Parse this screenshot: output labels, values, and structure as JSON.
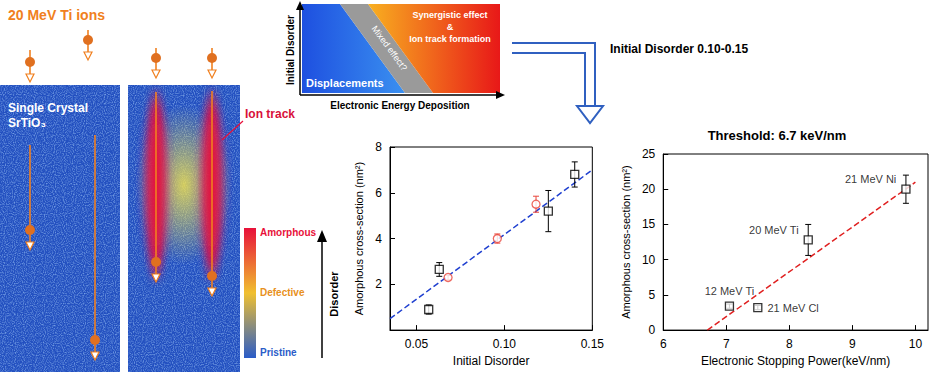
{
  "schematic": {
    "title": "20 MeV Ti ions",
    "crystal_label": [
      "Single Crystal",
      "SrTiO₃"
    ],
    "track_label": "Ion track",
    "color_bar": {
      "labels": [
        "Amorphous",
        "Defective",
        "Pristine"
      ],
      "axis_label": "Disorder"
    }
  },
  "regime_diagram": {
    "y_label": "Initial Disorder",
    "x_label": "Electronic Energy Deposition",
    "lower_region": "Displacements",
    "boundary": "Mixed effect?",
    "upper_region": [
      "Synergistic effect",
      "&",
      "Ion track formation"
    ]
  },
  "callout": "Initial Disorder 0.10-0.15",
  "chart_data": [
    {
      "type": "scatter",
      "x_label": "Initial Disorder",
      "y_label": "Amorphous cross-section (nm²)",
      "xlim": [
        0.035,
        0.15
      ],
      "xticks": [
        0.05,
        {
          "value": 0.1,
          "label": "0.10"
        },
        0.15
      ],
      "ylim": [
        0,
        8
      ],
      "yticks": [
        2,
        4,
        6,
        8
      ],
      "grid": false,
      "series": [
        {
          "type": "scatter",
          "marker": "square",
          "color": "#000000",
          "x": [
            0.057,
            0.063,
            0.125,
            0.14
          ],
          "values": [
            0.9,
            2.65,
            5.2,
            6.8
          ],
          "errors": [
            0.2,
            0.3,
            0.9,
            0.55
          ]
        },
        {
          "type": "scatter",
          "marker": "circle",
          "color": "#e8443a",
          "x": [
            0.068,
            0.096,
            0.118
          ],
          "values": [
            2.3,
            4.0,
            5.5
          ],
          "errors": [
            0.1,
            0.2,
            0.35
          ]
        },
        {
          "type": "line",
          "line_style": "dashed",
          "color": "#2040d0",
          "x": [
            0.035,
            0.15
          ],
          "values": [
            0.5,
            7.0
          ]
        }
      ]
    },
    {
      "type": "scatter",
      "title": "Threshold: 6.7 keV/nm",
      "x_label": "Electronic Stopping Power(keV/nm)",
      "y_label": "Amorphous cross-section (nm²)",
      "xlim": [
        6,
        10.2
      ],
      "xticks": [
        6,
        7,
        8,
        9,
        10
      ],
      "ylim": [
        0,
        25
      ],
      "yticks": [
        0,
        5,
        10,
        15,
        20,
        25
      ],
      "grid": false,
      "series": [
        {
          "type": "scatter",
          "marker": "square",
          "color": "#000000",
          "x": [
            7.05,
            7.5,
            8.3,
            9.85
          ],
          "values": [
            3.4,
            3.2,
            12.8,
            20.0
          ],
          "errors": [
            0.3,
            0.3,
            2.2,
            2.0
          ],
          "point_labels": [
            "12 MeV Ti",
            "21 MeV Cl",
            "20 MeV Ti",
            "21 MeV Ni"
          ]
        },
        {
          "type": "line",
          "line_style": "dashed",
          "color": "#e02020",
          "x": [
            6.7,
            10.0
          ],
          "values": [
            0,
            21
          ]
        }
      ]
    }
  ]
}
